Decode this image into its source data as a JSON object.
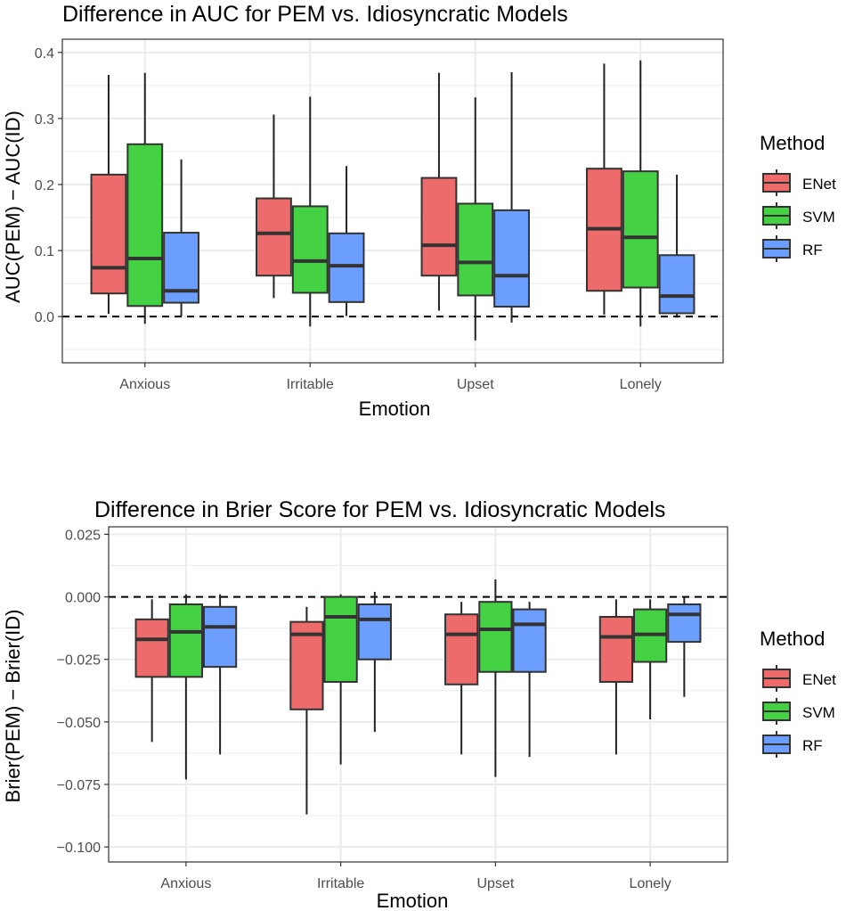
{
  "colors": {
    "ENet": "#EE6B6B",
    "SVM": "#44D144",
    "RF": "#6B9EFF",
    "panel_border": "#333333",
    "grid": "#EBEBEB",
    "text": "#000000",
    "tick_text": "#4D4D4D"
  },
  "chart_data": [
    {
      "type": "boxplot",
      "title": "Difference in AUC for PEM vs. Idiosyncratic Models",
      "xlabel": "Emotion",
      "ylabel": "AUC(PEM) − AUC(ID)",
      "categories": [
        "Anxious",
        "Irritable",
        "Upset",
        "Lonely"
      ],
      "ylim": [
        -0.07,
        0.42
      ],
      "yticks": [
        0.0,
        0.1,
        0.2,
        0.3,
        0.4
      ],
      "ytick_labels": [
        "0.0",
        "0.1",
        "0.2",
        "0.3",
        "0.4"
      ],
      "reference_line": 0.0,
      "grid": true,
      "legend": {
        "title": "Method",
        "position": "right"
      },
      "series": [
        {
          "name": "ENet",
          "boxes": [
            {
              "min": 0.004,
              "q1": 0.035,
              "median": 0.074,
              "q3": 0.215,
              "max": 0.366
            },
            {
              "min": 0.028,
              "q1": 0.062,
              "median": 0.126,
              "q3": 0.179,
              "max": 0.306
            },
            {
              "min": 0.009,
              "q1": 0.062,
              "median": 0.108,
              "q3": 0.21,
              "max": 0.369
            },
            {
              "min": 0.003,
              "q1": 0.039,
              "median": 0.133,
              "q3": 0.224,
              "max": 0.383
            }
          ]
        },
        {
          "name": "SVM",
          "boxes": [
            {
              "min": -0.011,
              "q1": 0.016,
              "median": 0.088,
              "q3": 0.261,
              "max": 0.369
            },
            {
              "min": -0.015,
              "q1": 0.036,
              "median": 0.084,
              "q3": 0.167,
              "max": 0.333
            },
            {
              "min": -0.036,
              "q1": 0.032,
              "median": 0.082,
              "q3": 0.171,
              "max": 0.332
            },
            {
              "min": -0.015,
              "q1": 0.044,
              "median": 0.12,
              "q3": 0.22,
              "max": 0.388
            }
          ]
        },
        {
          "name": "RF",
          "boxes": [
            {
              "min": 0.001,
              "q1": 0.021,
              "median": 0.039,
              "q3": 0.127,
              "max": 0.238
            },
            {
              "min": 0.001,
              "q1": 0.022,
              "median": 0.077,
              "q3": 0.126,
              "max": 0.228
            },
            {
              "min": -0.009,
              "q1": 0.015,
              "median": 0.062,
              "q3": 0.161,
              "max": 0.37
            },
            {
              "min": 0.001,
              "q1": 0.005,
              "median": 0.031,
              "q3": 0.093,
              "max": 0.215
            }
          ]
        }
      ]
    },
    {
      "type": "boxplot",
      "title": "Difference in Brier Score for PEM vs. Idiosyncratic Models",
      "xlabel": "Emotion",
      "ylabel": "Brier(PEM) − Brier(ID)",
      "categories": [
        "Anxious",
        "Irritable",
        "Upset",
        "Lonely"
      ],
      "ylim": [
        -0.106,
        0.028
      ],
      "yticks": [
        -0.1,
        -0.075,
        -0.05,
        -0.025,
        0.0,
        0.025
      ],
      "ytick_labels": [
        "−0.100",
        "−0.075",
        "−0.050",
        "−0.025",
        "0.000",
        "0.025"
      ],
      "reference_line": 0.0,
      "grid": true,
      "legend": {
        "title": "Method",
        "position": "right"
      },
      "series": [
        {
          "name": "ENet",
          "boxes": [
            {
              "min": -0.058,
              "q1": -0.032,
              "median": -0.017,
              "q3": -0.009,
              "max": -0.001
            },
            {
              "min": -0.087,
              "q1": -0.045,
              "median": -0.015,
              "q3": -0.01,
              "max": -0.004
            },
            {
              "min": -0.063,
              "q1": -0.035,
              "median": -0.015,
              "q3": -0.007,
              "max": -0.002
            },
            {
              "min": -0.063,
              "q1": -0.034,
              "median": -0.016,
              "q3": -0.008,
              "max": -0.001
            }
          ]
        },
        {
          "name": "SVM",
          "boxes": [
            {
              "min": -0.073,
              "q1": -0.032,
              "median": -0.014,
              "q3": -0.003,
              "max": 0.001
            },
            {
              "min": -0.067,
              "q1": -0.034,
              "median": -0.008,
              "q3": 0.0,
              "max": 0.001
            },
            {
              "min": -0.072,
              "q1": -0.03,
              "median": -0.013,
              "q3": -0.002,
              "max": 0.007
            },
            {
              "min": -0.049,
              "q1": -0.026,
              "median": -0.015,
              "q3": -0.005,
              "max": -0.001
            }
          ]
        },
        {
          "name": "RF",
          "boxes": [
            {
              "min": -0.063,
              "q1": -0.028,
              "median": -0.012,
              "q3": -0.004,
              "max": 0.001
            },
            {
              "min": -0.054,
              "q1": -0.025,
              "median": -0.009,
              "q3": -0.003,
              "max": 0.002
            },
            {
              "min": -0.064,
              "q1": -0.03,
              "median": -0.011,
              "q3": -0.005,
              "max": -0.002
            },
            {
              "min": -0.04,
              "q1": -0.018,
              "median": -0.007,
              "q3": -0.003,
              "max": 0.0
            }
          ]
        }
      ]
    }
  ]
}
